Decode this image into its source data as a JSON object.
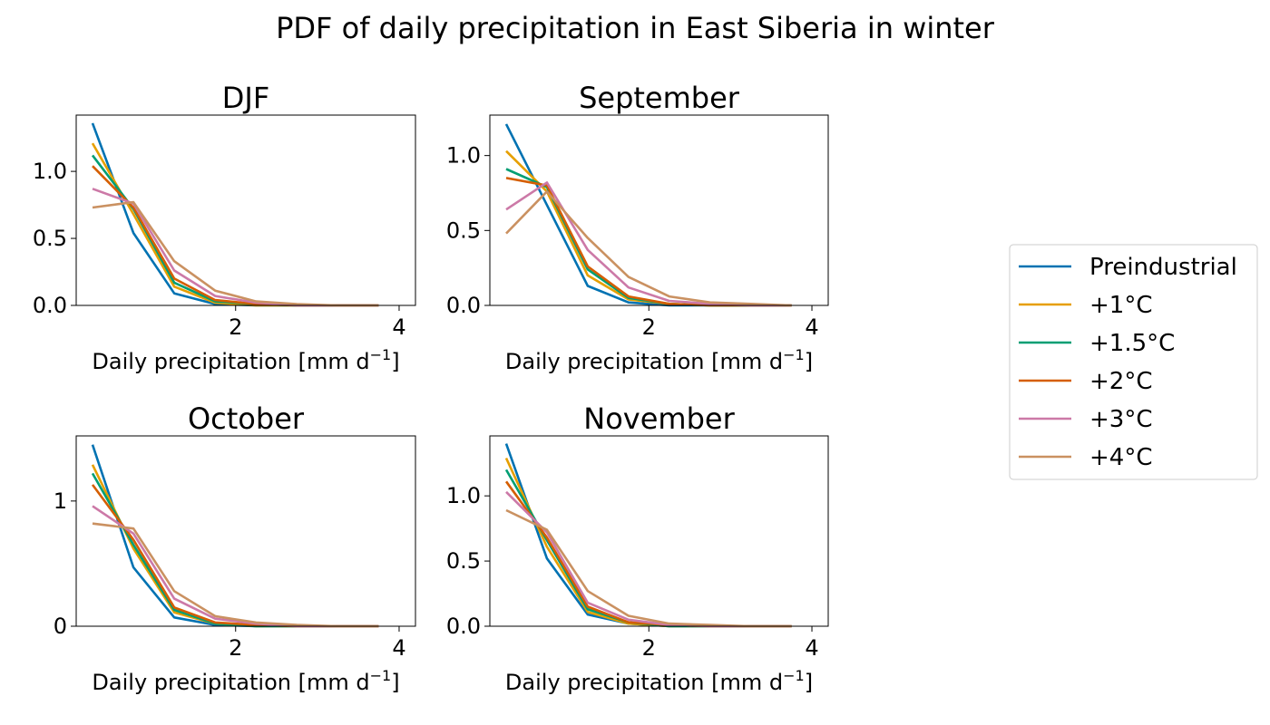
{
  "figure": {
    "suptitle": "PDF of daily precipitation in East Siberia in winter"
  },
  "legend": {
    "placement": "right",
    "entries": [
      {
        "label": "Preindustrial",
        "color": "#0072b2"
      },
      {
        "label": "+1°C",
        "color": "#e69f00"
      },
      {
        "label": "+1.5°C",
        "color": "#009e73"
      },
      {
        "label": "+2°C",
        "color": "#d55e00"
      },
      {
        "label": "+3°C",
        "color": "#cc79a7"
      },
      {
        "label": "+4°C",
        "color": "#ca9161"
      }
    ]
  },
  "chart_data": [
    {
      "type": "line",
      "title": "DJF",
      "xlabel": "Daily precipitation [mm d",
      "xlabel_sup": "−1",
      "xlabel_end": "]",
      "xlim": [
        0.05,
        4.2
      ],
      "ylim": [
        0,
        1.42
      ],
      "xticks": [
        2,
        4
      ],
      "xtick_labels": [
        "2",
        "4"
      ],
      "yticks": [
        0.0,
        0.5,
        1.0
      ],
      "ytick_labels": [
        "0.0",
        "0.5",
        "1.0"
      ],
      "grid": false,
      "x": [
        0.25,
        0.75,
        1.25,
        1.75,
        2.25,
        2.75,
        3.25,
        3.75
      ],
      "series": [
        {
          "name": "Preindustrial",
          "values": [
            1.36,
            0.54,
            0.09,
            0.01,
            0.0,
            0.0,
            0.0,
            0.0
          ]
        },
        {
          "name": "+1°C",
          "values": [
            1.21,
            0.68,
            0.14,
            0.02,
            0.0,
            0.0,
            0.0,
            0.0
          ]
        },
        {
          "name": "+1.5°C",
          "values": [
            1.12,
            0.72,
            0.17,
            0.03,
            0.01,
            0.0,
            0.0,
            0.0
          ]
        },
        {
          "name": "+2°C",
          "values": [
            1.04,
            0.73,
            0.2,
            0.04,
            0.01,
            0.0,
            0.0,
            0.0
          ]
        },
        {
          "name": "+3°C",
          "values": [
            0.87,
            0.76,
            0.26,
            0.07,
            0.02,
            0.0,
            0.0,
            0.0
          ]
        },
        {
          "name": "+4°C",
          "values": [
            0.73,
            0.77,
            0.33,
            0.11,
            0.03,
            0.01,
            0.0,
            0.0
          ]
        }
      ]
    },
    {
      "type": "line",
      "title": "September",
      "xlabel": "Daily precipitation [mm d",
      "xlabel_sup": "−1",
      "xlabel_end": "]",
      "xlim": [
        0.05,
        4.2
      ],
      "ylim": [
        0,
        1.27
      ],
      "xticks": [
        2,
        4
      ],
      "xtick_labels": [
        "2",
        "4"
      ],
      "yticks": [
        0.0,
        0.5,
        1.0
      ],
      "ytick_labels": [
        "0.0",
        "0.5",
        "1.0"
      ],
      "grid": false,
      "x": [
        0.25,
        0.75,
        1.25,
        1.75,
        2.25,
        2.75,
        3.25,
        3.75
      ],
      "series": [
        {
          "name": "Preindustrial",
          "values": [
            1.21,
            0.67,
            0.13,
            0.02,
            0.0,
            0.0,
            0.0,
            0.0
          ]
        },
        {
          "name": "+1°C",
          "values": [
            1.03,
            0.76,
            0.2,
            0.04,
            0.01,
            0.0,
            0.0,
            0.0
          ]
        },
        {
          "name": "+1.5°C",
          "values": [
            0.91,
            0.79,
            0.24,
            0.05,
            0.01,
            0.0,
            0.0,
            0.0
          ]
        },
        {
          "name": "+2°C",
          "values": [
            0.85,
            0.8,
            0.26,
            0.06,
            0.01,
            0.0,
            0.0,
            0.0
          ]
        },
        {
          "name": "+3°C",
          "values": [
            0.64,
            0.82,
            0.37,
            0.12,
            0.03,
            0.01,
            0.0,
            0.0
          ]
        },
        {
          "name": "+4°C",
          "values": [
            0.48,
            0.76,
            0.45,
            0.19,
            0.06,
            0.02,
            0.01,
            0.0
          ]
        }
      ]
    },
    {
      "type": "line",
      "title": "October",
      "xlabel": "Daily precipitation [mm d",
      "xlabel_sup": "−1",
      "xlabel_end": "]",
      "xlim": [
        0.05,
        4.2
      ],
      "ylim": [
        0,
        1.52
      ],
      "xticks": [
        2,
        4
      ],
      "xtick_labels": [
        "2",
        "4"
      ],
      "yticks": [
        0,
        1
      ],
      "ytick_labels": [
        "0",
        "1"
      ],
      "grid": false,
      "x": [
        0.25,
        0.75,
        1.25,
        1.75,
        2.25,
        2.75,
        3.25,
        3.75
      ],
      "series": [
        {
          "name": "Preindustrial",
          "values": [
            1.45,
            0.47,
            0.07,
            0.01,
            0.0,
            0.0,
            0.0,
            0.0
          ]
        },
        {
          "name": "+1°C",
          "values": [
            1.29,
            0.62,
            0.11,
            0.02,
            0.0,
            0.0,
            0.0,
            0.0
          ]
        },
        {
          "name": "+1.5°C",
          "values": [
            1.22,
            0.65,
            0.13,
            0.02,
            0.0,
            0.0,
            0.0,
            0.0
          ]
        },
        {
          "name": "+2°C",
          "values": [
            1.13,
            0.69,
            0.15,
            0.03,
            0.01,
            0.0,
            0.0,
            0.0
          ]
        },
        {
          "name": "+3°C",
          "values": [
            0.96,
            0.74,
            0.22,
            0.06,
            0.02,
            0.0,
            0.0,
            0.0
          ]
        },
        {
          "name": "+4°C",
          "values": [
            0.82,
            0.78,
            0.28,
            0.08,
            0.03,
            0.01,
            0.0,
            0.0
          ]
        }
      ]
    },
    {
      "type": "line",
      "title": "November",
      "xlabel": "Daily precipitation [mm d",
      "xlabel_sup": "−1",
      "xlabel_end": "]",
      "xlim": [
        0.05,
        4.2
      ],
      "ylim": [
        0,
        1.46
      ],
      "xticks": [
        2,
        4
      ],
      "xtick_labels": [
        "2",
        "4"
      ],
      "yticks": [
        0.0,
        0.5,
        1.0
      ],
      "ytick_labels": [
        "0.0",
        "0.5",
        "1.0"
      ],
      "grid": false,
      "x": [
        0.25,
        0.75,
        1.25,
        1.75,
        2.25,
        2.75,
        3.25,
        3.75
      ],
      "series": [
        {
          "name": "Preindustrial",
          "values": [
            1.4,
            0.52,
            0.09,
            0.02,
            0.0,
            0.0,
            0.0,
            0.0
          ]
        },
        {
          "name": "+1°C",
          "values": [
            1.29,
            0.61,
            0.11,
            0.02,
            0.0,
            0.0,
            0.0,
            0.0
          ]
        },
        {
          "name": "+1.5°C",
          "values": [
            1.2,
            0.66,
            0.13,
            0.03,
            0.0,
            0.0,
            0.0,
            0.0
          ]
        },
        {
          "name": "+2°C",
          "values": [
            1.11,
            0.68,
            0.15,
            0.03,
            0.01,
            0.0,
            0.0,
            0.0
          ]
        },
        {
          "name": "+3°C",
          "values": [
            1.03,
            0.72,
            0.18,
            0.05,
            0.01,
            0.0,
            0.0,
            0.0
          ]
        },
        {
          "name": "+4°C",
          "values": [
            0.89,
            0.74,
            0.27,
            0.08,
            0.02,
            0.01,
            0.0,
            0.0
          ]
        }
      ]
    }
  ]
}
